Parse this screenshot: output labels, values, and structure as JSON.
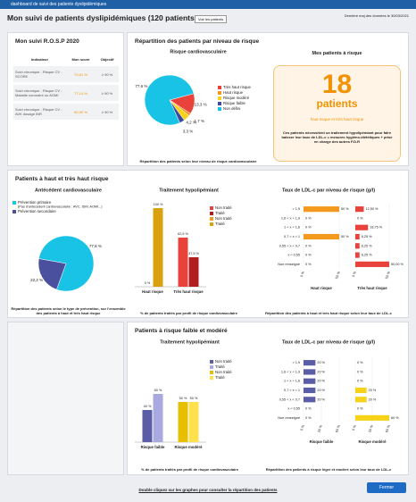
{
  "window_title": "dashboard de suivi des patients dyslipidémiques",
  "header": {
    "title": "Mon suivi de patients dyslipidémiques (120 patients)",
    "button": "Voir les patients",
    "updated": "Dernière maj des données le 30/03/2021"
  },
  "rosp": {
    "title": "Mon suivi R.O.S.P 2020",
    "columns": [
      "Indicateur",
      "Mon score",
      "Objectif"
    ],
    "rows": [
      [
        "Suivi chronique - Risque CV - SCORE",
        "70,61 %",
        "≥ 90 %"
      ],
      [
        "Suivi chronique - Risque CV - Maladie coronaire ou AOMI",
        "77,14 %",
        "≥ 90 %"
      ],
      [
        "Suivi chronique - Risque CV - AVK dosage INR",
        "60,90 %",
        "≥ 90 %"
      ]
    ]
  },
  "panels": {
    "risk": "Répartition des patients par niveau de risque",
    "high": "Patients à haut et très haut risque",
    "low": "Patients à risque faible et modéré"
  },
  "risk_box": {
    "title": "Mes patients à risque",
    "count": 18,
    "unit": "patients",
    "subtitle": "haut risque et très haut risque",
    "description": "Ces patients nécessitent un traitement hypolipémiant pour faire baisser leur taux de LDL-c = mesures hygiéno-diététiques + prise en charge des autres F.D.R"
  },
  "chart_data": [
    {
      "type": "pie",
      "title": "Risque cardiovasculaire",
      "categories": [
        "Très haut risque",
        "Haut risque",
        "Risque modéré",
        "Risque faible",
        "Non défini"
      ],
      "values": [
        13.3,
        1.7,
        4.2,
        3.3,
        77.6
      ],
      "value_labels": [
        "13,3 %",
        "1,7 %",
        "4,2 %",
        "3,3 %",
        "77,6 %"
      ],
      "colors": [
        "#e8423a",
        "#f39a1e",
        "#f7d21a",
        "#3c4a9c",
        "#19c3e6"
      ],
      "caption": "Répartition des patients selon leur niveau de risque cardiovasculaire"
    },
    {
      "type": "pie",
      "title": "Antécédent cardiovasculaire",
      "categories": [
        "Prévention primaire",
        "Prévention secondaire"
      ],
      "legend_note": "(Pas d'antécédent cardiovasculaire : AVC, IDM, AOMI...)",
      "values": [
        77.8,
        22.2
      ],
      "value_labels": [
        "77,8 %",
        "22,2 %"
      ],
      "colors": [
        "#19c3e6",
        "#4a4f9e"
      ],
      "caption": "Répartition des patients selon le type de prévention, sur l'ensemble des patients à haut et très haut risque"
    },
    {
      "type": "bar",
      "title": "Traitement hypolipémiant",
      "categories": [
        "Haut risque",
        "Très haut risque"
      ],
      "series": [
        {
          "name": "Non traité",
          "color": "#e8423a",
          "values": [
            null,
            62.5
          ],
          "value_labels": [
            null,
            "62,5 %"
          ]
        },
        {
          "name": "Traité",
          "color": "#b01e1e",
          "values": [
            null,
            37.5
          ],
          "value_labels": [
            null,
            "37,5 %"
          ]
        },
        {
          "name": "Non traité",
          "color": "#f39a1e",
          "values": [
            0,
            null
          ],
          "value_labels": [
            "0 %",
            null
          ]
        },
        {
          "name": "Traité",
          "color": "#d9a10e",
          "values": [
            100,
            null
          ],
          "value_labels": [
            "100 %",
            null
          ]
        }
      ],
      "ylim": [
        0,
        100
      ],
      "caption": "% de patients traités par profil de risque cardiovasculaire"
    },
    {
      "type": "hbar",
      "title": "Taux de LDL-c par niveau de risque (g/l)",
      "categories": [
        "> 1,9",
        "1,6 < x < 1,9",
        "1 < x < 1,6",
        "0,7 < x < 1",
        "0,55 < x < 0,7",
        "x < 0,55",
        "Non renseigné"
      ],
      "series": [
        {
          "name": "Haut risque",
          "color": "#f39a1e",
          "values": [
            50,
            0,
            0,
            50,
            0,
            0,
            0
          ],
          "value_labels": [
            "50 %",
            "0 %",
            "0 %",
            "50 %",
            "0 %",
            "0 %",
            "0 %"
          ]
        },
        {
          "name": "Très haut risque",
          "color": "#e8423a",
          "values": [
            12.5,
            0,
            18.75,
            6.25,
            6.25,
            6.25,
            50
          ],
          "value_labels": [
            "12,50 %",
            "0 %",
            "18,75 %",
            "6,25 %",
            "6,25 %",
            "6,25 %",
            "50,00 %"
          ]
        }
      ],
      "xlim": [
        0,
        50
      ],
      "xticks": [
        {
          "value": 0,
          "label": "0 %"
        },
        {
          "value": 50,
          "label": "50 %"
        }
      ],
      "caption": "Répartition des patients à haut et très haut risque selon leur taux de LDL-c"
    },
    {
      "type": "bar",
      "title": "Traitement hypolipémiant",
      "categories": [
        "Risque faible",
        "Risque modéré"
      ],
      "series": [
        {
          "name": "Non traité",
          "color": "#5b5ea6",
          "values": [
            40,
            null
          ],
          "value_labels": [
            "40 %",
            null
          ]
        },
        {
          "name": "Traité",
          "color": "#a9a9e0",
          "values": [
            60,
            null
          ],
          "value_labels": [
            "60 %",
            null
          ]
        },
        {
          "name": "Non traité",
          "color": "#e6bf00",
          "values": [
            null,
            50
          ],
          "value_labels": [
            null,
            "50 %"
          ]
        },
        {
          "name": "Traité",
          "color": "#ffe14d",
          "values": [
            null,
            50
          ],
          "value_labels": [
            null,
            "50 %"
          ]
        }
      ],
      "ylim": [
        0,
        100
      ],
      "caption": "% de patients traités par profil de risque cardiovasculaire"
    },
    {
      "type": "hbar",
      "title": "Taux de LDL-c par niveau de risque (g/l)",
      "categories": [
        "> 1,9",
        "1,6 < x < 1,9",
        "1 < x < 1,6",
        "0,7 < x < 1",
        "0,55 < x < 0,7",
        "x < 0,55",
        "Non renseigné"
      ],
      "series": [
        {
          "name": "Risque faible",
          "color": "#5b5ea6",
          "values": [
            20,
            20,
            20,
            20,
            20,
            0,
            0
          ],
          "value_labels": [
            "20 %",
            "20 %",
            "20 %",
            "20 %",
            "20 %",
            "0 %",
            "0 %"
          ]
        },
        {
          "name": "Risque modéré",
          "color": "#f7d21a",
          "values": [
            0,
            0,
            0,
            20,
            20,
            0,
            60
          ],
          "value_labels": [
            "0 %",
            "0 %",
            "0 %",
            "20 %",
            "20 %",
            "0 %",
            "60 %"
          ]
        }
      ],
      "xlim": [
        0,
        60
      ],
      "xticks": [
        {
          "value": 0,
          "label": "0 %"
        },
        {
          "value": 30,
          "label": "30 %"
        },
        {
          "value": 60,
          "label": "60 %"
        }
      ],
      "caption": "Répartition des patients à risque léger et modéré selon leur taux de LDL-c"
    }
  ],
  "footer": {
    "link": "Double cliquez sur les graphes pour consulter la répartition des patients",
    "button": "Fermer"
  }
}
